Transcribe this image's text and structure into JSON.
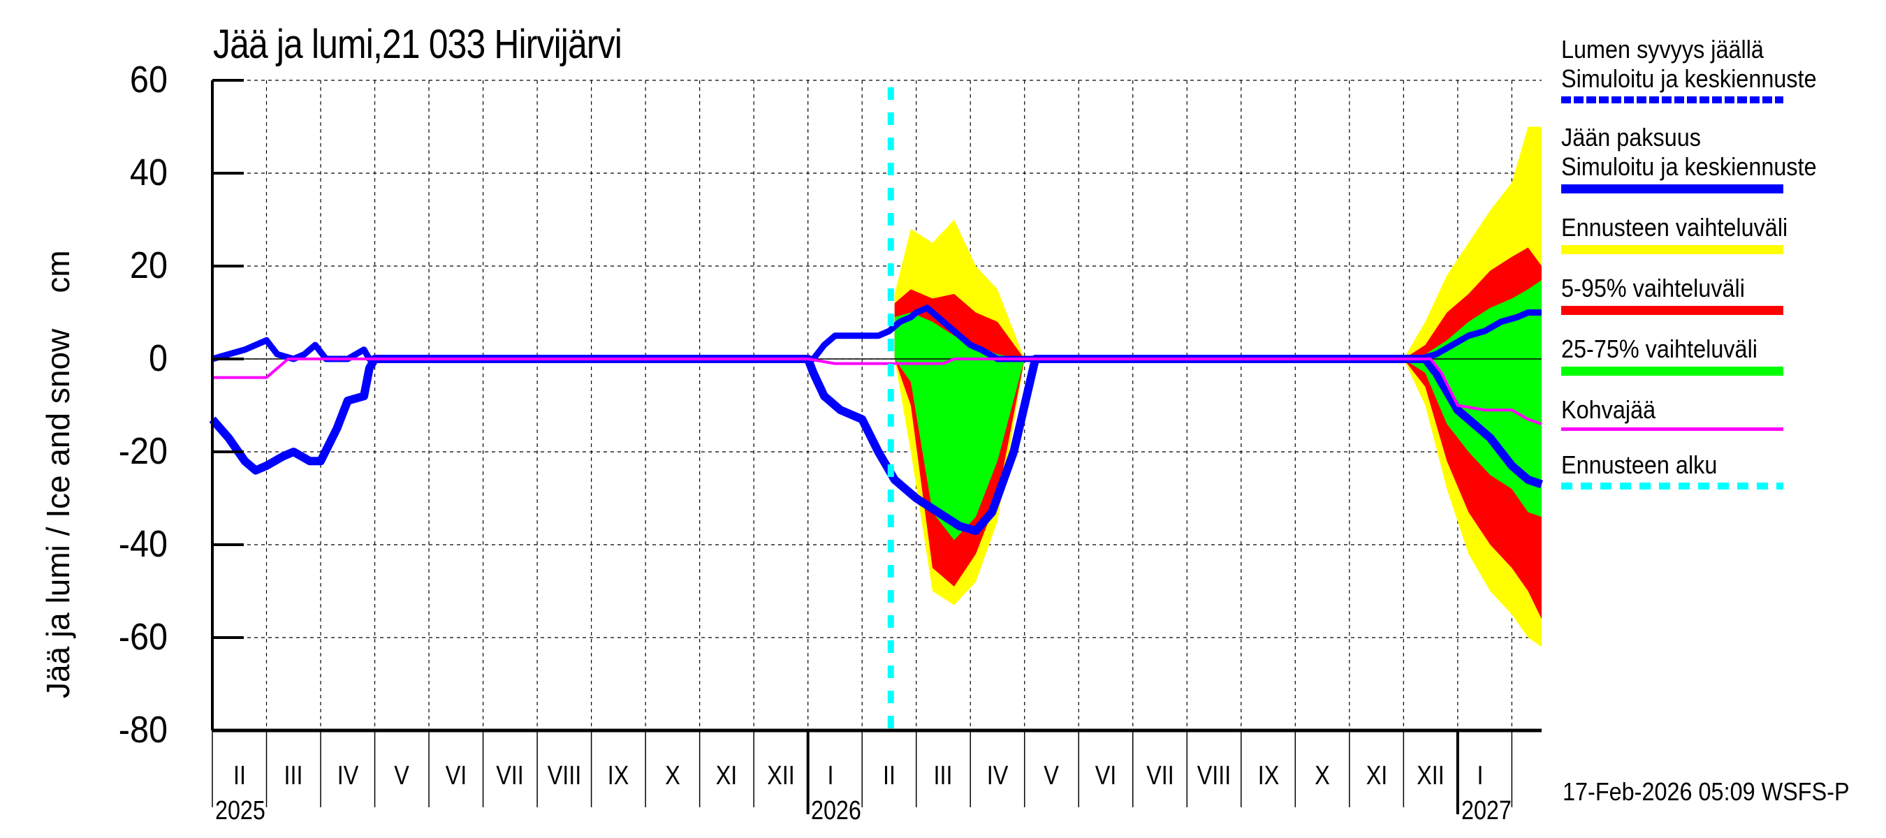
{
  "chart_data": {
    "type": "area",
    "title": "Jää ja lumi,21 033 Hirvijärvi",
    "ylabel": "Jää ja lumi / Ice and snow    cm",
    "xlabel": "",
    "ylim": [
      -80,
      60
    ],
    "yticks": [
      60,
      40,
      20,
      0,
      -20,
      -40,
      -60,
      -80
    ],
    "grid": true,
    "x_unit": "months since 2025-02-01",
    "xlim": [
      0,
      24.55
    ],
    "month_labels": [
      "II",
      "III",
      "IV",
      "V",
      "VI",
      "VII",
      "VIII",
      "IX",
      "X",
      "XI",
      "XII",
      "I",
      "II",
      "III",
      "IV",
      "V",
      "VI",
      "VII",
      "VIII",
      "IX",
      "X",
      "XI",
      "XII",
      "I"
    ],
    "year_labels": [
      {
        "label": "2025",
        "x": 0
      },
      {
        "label": "2026",
        "x": 11
      },
      {
        "label": "2027",
        "x": 23
      }
    ],
    "forecast_start_x": 12.53,
    "series": [
      {
        "name": "Lumen syvyys jäällä – Simuloitu ja keskiennuste",
        "style": "dotted",
        "color": "#0000ff",
        "x": [
          0,
          0.3,
          0.6,
          0.8,
          1.0,
          1.2,
          1.5,
          1.7,
          1.9,
          2.1,
          2.5,
          2.8,
          2.9,
          3.0,
          11.0,
          11.1,
          11.3,
          11.5,
          11.8,
          12.3,
          12.5,
          12.7,
          12.9,
          13.0,
          13.2,
          13.5,
          13.8,
          14.0,
          14.2,
          14.5,
          22.3,
          22.6,
          22.9,
          23.2,
          23.5,
          23.8,
          24.1,
          24.3,
          24.55
        ],
        "y": [
          0,
          1,
          2,
          3,
          4,
          1,
          0,
          1,
          3,
          0,
          0,
          2,
          0,
          0,
          0,
          0,
          3,
          5,
          5,
          5,
          6,
          8,
          9,
          10,
          11,
          8,
          5,
          3,
          2,
          0,
          0,
          1,
          3,
          5,
          6,
          8,
          9,
          10,
          10
        ]
      },
      {
        "name": "Jään paksuus – Simuloitu ja keskiennuste",
        "style": "solid",
        "color": "#0000ff",
        "x": [
          0,
          0.3,
          0.6,
          0.8,
          1.0,
          1.3,
          1.5,
          1.8,
          2.0,
          2.3,
          2.5,
          2.8,
          2.9,
          3.0,
          11.0,
          11.1,
          11.3,
          11.6,
          12.0,
          12.3,
          12.6,
          13.0,
          13.4,
          13.8,
          14.1,
          14.4,
          14.8,
          15.1,
          15.2,
          22.4,
          22.6,
          23.0,
          23.3,
          23.6,
          24.0,
          24.3,
          24.55
        ],
        "y": [
          -13,
          -17,
          -22,
          -24,
          -23,
          -21,
          -20,
          -22,
          -22,
          -15,
          -9,
          -8,
          -2,
          0,
          0,
          -3,
          -8,
          -11,
          -13,
          -20,
          -26,
          -30,
          -33,
          -36,
          -37,
          -33,
          -20,
          -5,
          0,
          0,
          -3,
          -11,
          -14,
          -17,
          -23,
          -26,
          -27
        ]
      },
      {
        "name": "Kohvajää",
        "style": "solid",
        "color": "#ff00ff",
        "x": [
          0,
          1.0,
          1.2,
          1.4,
          3.0,
          11.0,
          11.5,
          12.5,
          13.5,
          13.7,
          22.5,
          22.7,
          23.0,
          23.5,
          24.0,
          24.3,
          24.55
        ],
        "y": [
          -4,
          -4,
          -2,
          0,
          0,
          0,
          -1,
          -1,
          -1,
          0,
          0,
          -3,
          -10,
          -11,
          -11,
          -13,
          -14
        ]
      }
    ],
    "bands": [
      {
        "name": "Ennusteen vaihteluväli",
        "color": "#ffff00",
        "x": [
          12.6,
          12.9,
          13.3,
          13.7,
          14.1,
          14.5,
          15.0,
          22.0,
          22.4,
          22.8,
          23.2,
          23.6,
          24.0,
          24.3,
          24.55
        ],
        "upper": [
          14,
          28,
          25,
          30,
          20,
          15,
          0,
          0,
          8,
          18,
          25,
          32,
          38,
          50,
          50
        ],
        "lower": [
          0,
          -20,
          -50,
          -53,
          -48,
          -35,
          0,
          0,
          -10,
          -28,
          -42,
          -50,
          -55,
          -60,
          -62
        ]
      },
      {
        "name": "5-95% vaihteluväli",
        "color": "#ff0000",
        "x": [
          12.6,
          12.9,
          13.3,
          13.7,
          14.1,
          14.5,
          15.0,
          22.0,
          22.4,
          22.8,
          23.2,
          23.6,
          24.0,
          24.3,
          24.55
        ],
        "upper": [
          12,
          15,
          13,
          14,
          10,
          8,
          0,
          0,
          3,
          10,
          14,
          19,
          22,
          24,
          20
        ],
        "lower": [
          0,
          -10,
          -45,
          -49,
          -42,
          -30,
          0,
          0,
          -6,
          -22,
          -33,
          -40,
          -45,
          -50,
          -56
        ]
      },
      {
        "name": "25-75% vaihteluväli",
        "color": "#00ff00",
        "x": [
          12.6,
          12.9,
          13.3,
          13.7,
          14.1,
          14.5,
          15.0,
          22.0,
          22.4,
          22.8,
          23.2,
          23.6,
          24.0,
          24.3,
          24.55
        ],
        "upper": [
          9,
          10,
          8,
          5,
          3,
          1,
          0,
          0,
          1,
          4,
          8,
          11,
          13,
          15,
          17
        ],
        "lower": [
          0,
          -5,
          -33,
          -39,
          -34,
          -22,
          0,
          0,
          -3,
          -14,
          -20,
          -25,
          -28,
          -33,
          -34
        ]
      }
    ],
    "legend_position": "right"
  },
  "legend": [
    {
      "line1": "Lumen syvyys jäällä",
      "line2": "Simuloitu ja keskiennuste",
      "color": "#0000ff",
      "style": "dotted"
    },
    {
      "line1": "Jään paksuus",
      "line2": "Simuloitu ja keskiennuste",
      "color": "#0000ff",
      "style": "solid"
    },
    {
      "line1": "Ennusteen vaihteluväli",
      "line2": "",
      "color": "#ffff00",
      "style": "solid"
    },
    {
      "line1": "5-95% vaihteluväli",
      "line2": "",
      "color": "#ff0000",
      "style": "solid"
    },
    {
      "line1": "25-75% vaihteluväli",
      "line2": "",
      "color": "#00ff00",
      "style": "solid"
    },
    {
      "line1": "Kohvajää",
      "line2": "",
      "color": "#ff00ff",
      "style": "thin"
    },
    {
      "line1": "Ennusteen alku",
      "line2": "",
      "color": "#00ffff",
      "style": "dashed"
    }
  ],
  "footer": {
    "timestamp": "17-Feb-2026 05:09 WSFS-P"
  }
}
